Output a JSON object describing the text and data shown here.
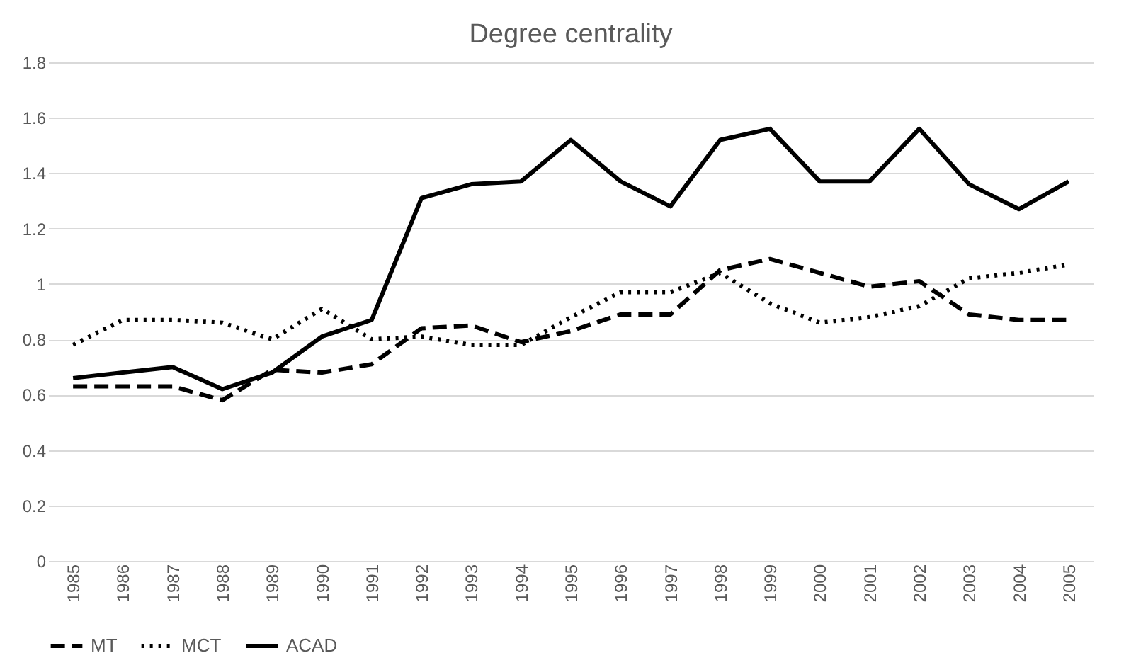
{
  "chart_data": {
    "type": "line",
    "title": "Degree centrality",
    "categories": [
      "1985",
      "1986",
      "1987",
      "1988",
      "1989",
      "1990",
      "1991",
      "1992",
      "1993",
      "1994",
      "1995",
      "1996",
      "1997",
      "1998",
      "1999",
      "2000",
      "2001",
      "2002",
      "2003",
      "2004",
      "2005"
    ],
    "series": [
      {
        "name": "MT",
        "color": "#000000",
        "line_style": "dashed",
        "values": [
          0.63,
          0.63,
          0.63,
          0.58,
          0.69,
          0.68,
          0.71,
          0.84,
          0.85,
          0.79,
          0.83,
          0.89,
          0.89,
          1.05,
          1.09,
          1.04,
          0.99,
          1.01,
          0.89,
          0.87,
          0.87
        ]
      },
      {
        "name": "MCT",
        "color": "#000000",
        "line_style": "dotted",
        "values": [
          0.78,
          0.87,
          0.87,
          0.86,
          0.8,
          0.91,
          0.8,
          0.81,
          0.78,
          0.78,
          0.88,
          0.97,
          0.97,
          1.04,
          0.93,
          0.86,
          0.88,
          0.92,
          1.02,
          1.04,
          1.07
        ]
      },
      {
        "name": "ACAD",
        "color": "#000000",
        "line_style": "solid",
        "values": [
          0.66,
          0.68,
          0.7,
          0.62,
          0.68,
          0.81,
          0.87,
          1.31,
          1.36,
          1.37,
          1.52,
          1.37,
          1.28,
          1.52,
          1.56,
          1.37,
          1.37,
          1.56,
          1.36,
          1.27,
          1.37
        ]
      }
    ],
    "ylim": [
      0,
      1.8
    ],
    "yticks": [
      0,
      0.2,
      0.4,
      0.6,
      0.8,
      1,
      1.2,
      1.4,
      1.6,
      1.8
    ],
    "grid": "y",
    "legend": "bottom",
    "marker": "none"
  }
}
